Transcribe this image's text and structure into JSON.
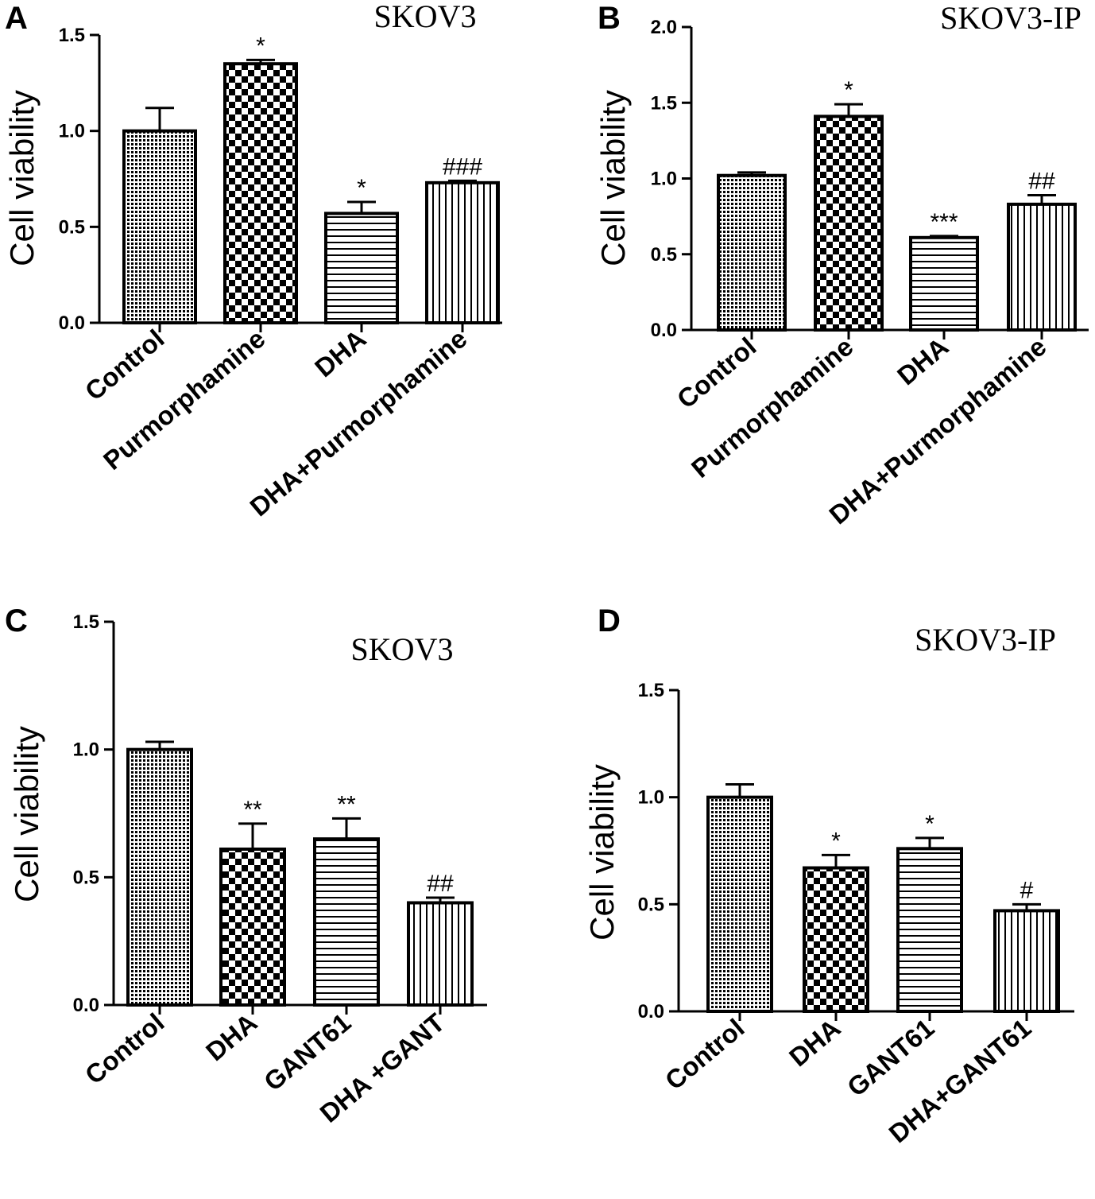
{
  "chart_data": [
    {
      "type": "bar",
      "panel": "A",
      "title": "SKOV3",
      "ylabel": "Cell viability",
      "ylim": [
        0,
        1.5
      ],
      "yticks": [
        "0.0",
        "0.5",
        "1.0",
        "1.5"
      ],
      "categories": [
        "Control",
        "Purmorphamine",
        "DHA",
        "DHA+Purmorphamine"
      ],
      "values": [
        1.0,
        1.35,
        0.57,
        0.73
      ],
      "errors": [
        0.12,
        0.02,
        0.06,
        0.01
      ],
      "annotations": [
        "",
        "*",
        "*",
        "###"
      ],
      "patterns": [
        "dots",
        "checker",
        "hlines",
        "vlines"
      ]
    },
    {
      "type": "bar",
      "panel": "B",
      "title": "SKOV3-IP",
      "ylabel": "Cell viability",
      "ylim": [
        0,
        2.0
      ],
      "yticks": [
        "0.0",
        "0.5",
        "1.0",
        "1.5",
        "2.0"
      ],
      "categories": [
        "Control",
        "Purmorphamine",
        "DHA",
        "DHA+Purmorphamine"
      ],
      "values": [
        1.02,
        1.41,
        0.61,
        0.83
      ],
      "errors": [
        0.02,
        0.08,
        0.01,
        0.06
      ],
      "annotations": [
        "",
        "*",
        "***",
        "##"
      ],
      "patterns": [
        "dots",
        "checker",
        "hlines",
        "vlines"
      ]
    },
    {
      "type": "bar",
      "panel": "C",
      "title": "SKOV3",
      "ylabel": "Cell viability",
      "ylim": [
        0,
        1.5
      ],
      "yticks": [
        "0.0",
        "0.5",
        "1.0",
        "1.5"
      ],
      "categories": [
        "Control",
        "DHA",
        "GANT61",
        "DHA +GANT"
      ],
      "values": [
        1.0,
        0.61,
        0.65,
        0.4
      ],
      "errors": [
        0.03,
        0.1,
        0.08,
        0.02
      ],
      "annotations": [
        "",
        "**",
        "**",
        "##"
      ],
      "patterns": [
        "dots",
        "checker",
        "hlines",
        "vlines"
      ]
    },
    {
      "type": "bar",
      "panel": "D",
      "title": "SKOV3-IP",
      "ylabel": "Cell viability",
      "ylim": [
        0,
        1.5
      ],
      "yticks": [
        "0.0",
        "0.5",
        "1.0",
        "1.5"
      ],
      "categories": [
        "Control",
        "DHA",
        "GANT61",
        "DHA+GANT61"
      ],
      "values": [
        1.0,
        0.67,
        0.76,
        0.47
      ],
      "errors": [
        0.06,
        0.06,
        0.05,
        0.03
      ],
      "annotations": [
        "",
        "*",
        "*",
        "#"
      ],
      "patterns": [
        "dots",
        "checker",
        "hlines",
        "vlines"
      ]
    }
  ]
}
